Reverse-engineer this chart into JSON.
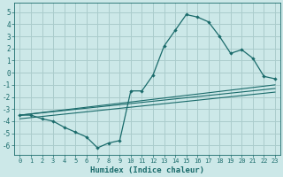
{
  "xlabel": "Humidex (Indice chaleur)",
  "bg_color": "#cce8e8",
  "grid_color": "#aacccc",
  "line_color": "#1a6b6b",
  "xlim": [
    -0.5,
    23.5
  ],
  "ylim": [
    -6.8,
    5.8
  ],
  "yticks": [
    -6,
    -5,
    -4,
    -3,
    -2,
    -1,
    0,
    1,
    2,
    3,
    4,
    5
  ],
  "xticks": [
    0,
    1,
    2,
    3,
    4,
    5,
    6,
    7,
    8,
    9,
    10,
    11,
    12,
    13,
    14,
    15,
    16,
    17,
    18,
    19,
    20,
    21,
    22,
    23
  ],
  "main_x": [
    0,
    1,
    2,
    3,
    4,
    5,
    6,
    7,
    8,
    9,
    10,
    11,
    12,
    13,
    14,
    15,
    16,
    17,
    18,
    19,
    20,
    21,
    22,
    23
  ],
  "main_y": [
    -3.5,
    -3.5,
    -3.8,
    -4.0,
    -4.5,
    -4.9,
    -5.3,
    -6.2,
    -5.8,
    -5.6,
    -1.5,
    -1.5,
    -0.2,
    2.2,
    3.5,
    4.8,
    4.6,
    4.2,
    3.0,
    1.6,
    1.9,
    1.2,
    -0.3,
    -0.5
  ],
  "trend1_x": [
    0,
    23
  ],
  "trend1_y": [
    -3.5,
    -1.3
  ],
  "trend2_x": [
    0,
    23
  ],
  "trend2_y": [
    -3.5,
    -1.0
  ],
  "trend3_x": [
    0,
    23
  ],
  "trend3_y": [
    -3.8,
    -1.6
  ]
}
